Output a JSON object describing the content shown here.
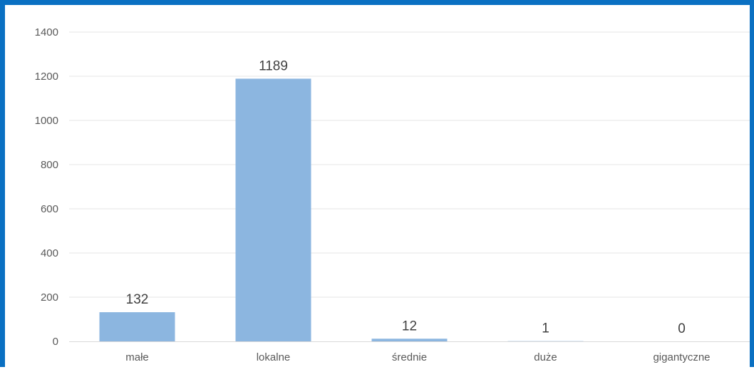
{
  "chart_data": {
    "type": "bar",
    "title": "",
    "xlabel": "",
    "ylabel": "",
    "categories": [
      "małe",
      "lokalne",
      "średnie",
      "duże",
      "gigantyczne"
    ],
    "values": [
      132,
      1189,
      12,
      1,
      0
    ],
    "data_labels": [
      "132",
      "1189",
      "12",
      "1",
      "0"
    ],
    "ylim": [
      0,
      1400
    ],
    "yticks": [
      0,
      200,
      400,
      600,
      800,
      1000,
      1200,
      1400
    ],
    "ytick_labels": [
      "0",
      "200",
      "400",
      "600",
      "800",
      "1000",
      "1200",
      "1400"
    ],
    "grid": true,
    "legend": "none",
    "bar_color": "#8cb6e0",
    "frame_color": "#0a70c2"
  }
}
